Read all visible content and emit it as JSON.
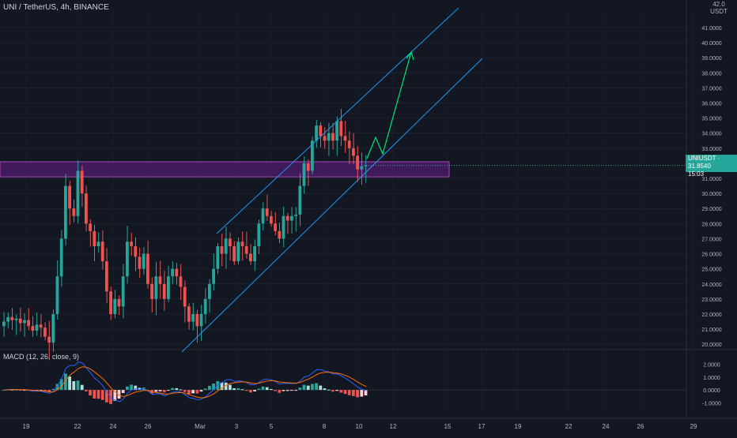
{
  "header": {
    "symbol_text": "UNI / TetherUS, 4h, BINANCE"
  },
  "price_axis": {
    "unit_label": "USDT",
    "top_partial": "42.0",
    "ticks": [
      "41.0000",
      "40.0000",
      "39.0000",
      "38.0000",
      "37.0000",
      "36.0000",
      "35.0000",
      "34.0000",
      "33.0000",
      "31.0000",
      "30.0000",
      "29.0000",
      "28.0000",
      "27.0000",
      "26.0000",
      "25.0000",
      "24.0000",
      "23.0000",
      "22.0000",
      "21.0000",
      "20.0000"
    ]
  },
  "price_tag": {
    "symbol": "UNIUSDT",
    "value": "31.8540",
    "countdown": "15:03",
    "color": "#26a69a"
  },
  "macd": {
    "label": "MACD (12, 26, close, 9)",
    "ticks": [
      "2.0000",
      "1.0000",
      "0.0000",
      "-1.0000"
    ]
  },
  "time_axis": {
    "labels": [
      "19",
      "22",
      "24",
      "26",
      "Mar",
      "3",
      "5",
      "8",
      "10",
      "12",
      "15",
      "17",
      "19",
      "22",
      "24",
      "26",
      "29"
    ]
  },
  "colors": {
    "background": "#131722",
    "bull": "#26a69a",
    "bear": "#ef5350",
    "zone": "#7b1fa2",
    "channel": "#2196f3",
    "projection": "#00e676",
    "macd_line": "#2962ff",
    "signal_line": "#ff6d00"
  },
  "chart_data": {
    "type": "candlestick",
    "symbol": "UNI / TetherUS",
    "timeframe": "4h",
    "exchange": "BINANCE",
    "ylim": [
      19.8,
      42.2
    ],
    "x_labels": [
      "19",
      "22",
      "24",
      "26",
      "Mar",
      "3",
      "5",
      "8",
      "10",
      "12",
      "15",
      "17",
      "19",
      "22",
      "24",
      "26",
      "29"
    ],
    "last_price": 31.854,
    "close_path": [
      [
        0,
        21.5
      ],
      [
        1,
        21.8
      ],
      [
        2,
        21.6
      ],
      [
        3,
        21.7
      ],
      [
        4,
        21.4
      ],
      [
        5,
        21.6
      ],
      [
        6,
        21.2
      ],
      [
        7,
        20.9
      ],
      [
        8,
        21.3
      ],
      [
        9,
        21.1
      ],
      [
        10,
        20.5
      ],
      [
        11,
        20.1
      ],
      [
        12,
        22.0
      ],
      [
        13,
        24.5
      ],
      [
        14,
        27.0
      ],
      [
        15,
        30.5
      ],
      [
        16,
        29.0
      ],
      [
        17,
        28.5
      ],
      [
        18,
        31.5
      ],
      [
        19,
        30.0
      ],
      [
        20,
        28.0
      ],
      [
        21,
        27.5
      ],
      [
        22,
        26.5
      ],
      [
        23,
        26.8
      ],
      [
        24,
        25.5
      ],
      [
        25,
        23.5
      ],
      [
        26,
        22.0
      ],
      [
        27,
        23.0
      ],
      [
        28,
        22.5
      ],
      [
        29,
        24.5
      ],
      [
        30,
        26.8
      ],
      [
        31,
        26.5
      ],
      [
        32,
        25.8
      ],
      [
        33,
        25.0
      ],
      [
        34,
        26.0
      ],
      [
        35,
        24.0
      ],
      [
        36,
        23.0
      ],
      [
        37,
        24.5
      ],
      [
        38,
        24.0
      ],
      [
        39,
        23.0
      ],
      [
        40,
        24.5
      ],
      [
        41,
        25.0
      ],
      [
        42,
        24.5
      ],
      [
        43,
        23.8
      ],
      [
        44,
        22.5
      ],
      [
        45,
        21.5
      ],
      [
        46,
        22.0
      ],
      [
        47,
        21.2
      ],
      [
        48,
        22.0
      ],
      [
        49,
        23.0
      ],
      [
        50,
        24.0
      ],
      [
        51,
        25.0
      ],
      [
        52,
        26.5
      ],
      [
        53,
        26.0
      ],
      [
        54,
        27.0
      ],
      [
        55,
        26.5
      ],
      [
        56,
        25.5
      ],
      [
        57,
        26.8
      ],
      [
        58,
        26.5
      ],
      [
        59,
        26.0
      ],
      [
        60,
        25.5
      ],
      [
        61,
        26.5
      ],
      [
        62,
        28.0
      ],
      [
        63,
        29.0
      ],
      [
        64,
        28.5
      ],
      [
        65,
        28.0
      ],
      [
        66,
        27.5
      ],
      [
        67,
        27.0
      ],
      [
        68,
        28.5
      ],
      [
        69,
        28.2
      ],
      [
        70,
        28.5
      ],
      [
        71,
        28.6
      ],
      [
        72,
        30.5
      ],
      [
        73,
        32.0
      ],
      [
        74,
        31.5
      ],
      [
        75,
        33.5
      ],
      [
        76,
        34.5
      ],
      [
        77,
        33.8
      ],
      [
        78,
        33.5
      ],
      [
        79,
        34.0
      ],
      [
        80,
        33.5
      ],
      [
        81,
        34.8
      ],
      [
        82,
        33.8
      ],
      [
        83,
        33.5
      ],
      [
        84,
        33.0
      ],
      [
        85,
        32.5
      ],
      [
        86,
        31.6
      ],
      [
        87,
        31.8
      ],
      [
        88,
        31.854
      ]
    ],
    "support_zone": [
      31.1,
      32.1
    ],
    "channel_lower": [
      [
        0,
        20.0
      ],
      [
        1,
        40.2
      ]
    ],
    "channel_upper": [
      [
        0,
        27.0
      ],
      [
        1,
        43.6
      ]
    ],
    "macd_series": [
      {
        "name": "MACD",
        "color": "#2962ff"
      },
      {
        "name": "Signal",
        "color": "#ff6d00"
      }
    ]
  }
}
